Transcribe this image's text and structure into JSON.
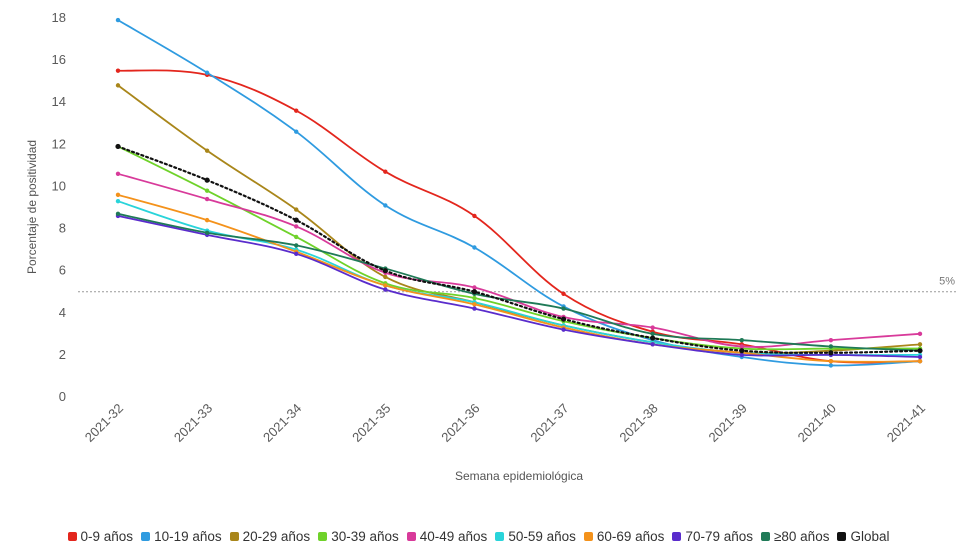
{
  "chart_data": {
    "type": "line",
    "title": "",
    "xlabel": "Semana epidemiológica",
    "ylabel": "Porcentaje de positividad",
    "categories": [
      "2021-32",
      "2021-33",
      "2021-34",
      "2021-35",
      "2021-36",
      "2021-37",
      "2021-38",
      "2021-39",
      "2021-40",
      "2021-41"
    ],
    "ylim": [
      0,
      18
    ],
    "yticks": [
      0,
      2,
      4,
      6,
      8,
      10,
      12,
      14,
      16,
      18
    ],
    "grid": false,
    "legend_position": "bottom",
    "reference_line": {
      "value": 5,
      "label": "5%"
    },
    "series": [
      {
        "name": "0-9 años",
        "color": "#e3261d",
        "values": [
          15.5,
          15.3,
          13.6,
          10.7,
          8.6,
          4.9,
          3.1,
          2.5,
          1.7,
          1.7
        ]
      },
      {
        "name": "10-19 años",
        "color": "#2f9be0",
        "values": [
          17.9,
          15.4,
          12.6,
          9.1,
          7.1,
          4.3,
          2.7,
          1.9,
          1.5,
          1.7
        ]
      },
      {
        "name": "20-29 años",
        "color": "#a9861a",
        "values": [
          14.8,
          11.7,
          8.9,
          5.7,
          4.5,
          3.4,
          2.6,
          2.1,
          2.2,
          2.5
        ]
      },
      {
        "name": "30-39 años",
        "color": "#6fd22a",
        "values": [
          11.9,
          9.8,
          7.6,
          5.4,
          4.7,
          3.6,
          2.8,
          2.3,
          2.3,
          2.3
        ]
      },
      {
        "name": "40-49 años",
        "color": "#d83a9a",
        "values": [
          10.6,
          9.4,
          8.1,
          5.9,
          5.2,
          3.8,
          3.3,
          2.4,
          2.7,
          3.0
        ]
      },
      {
        "name": "50-59 años",
        "color": "#29d4da",
        "values": [
          9.3,
          7.9,
          7.0,
          5.3,
          4.5,
          3.4,
          2.6,
          2.1,
          2.0,
          2.0
        ]
      },
      {
        "name": "60-69 años",
        "color": "#f4921b",
        "values": [
          9.6,
          8.4,
          6.9,
          5.3,
          4.4,
          3.3,
          2.5,
          2.1,
          1.7,
          1.7
        ]
      },
      {
        "name": "70-79 años",
        "color": "#5a2ccc",
        "values": [
          8.6,
          7.7,
          6.8,
          5.1,
          4.2,
          3.2,
          2.5,
          2.0,
          2.0,
          1.9
        ]
      },
      {
        "name": "≥80 años",
        "color": "#1f7a57",
        "values": [
          8.7,
          7.8,
          7.2,
          6.1,
          4.9,
          4.2,
          3.0,
          2.7,
          2.4,
          2.2
        ],
        "name_underline": true
      },
      {
        "name": "Global",
        "color": "#111111",
        "values": [
          11.9,
          10.3,
          8.4,
          6.0,
          5.0,
          3.7,
          2.8,
          2.2,
          2.1,
          2.2
        ],
        "dashed": true
      }
    ]
  }
}
